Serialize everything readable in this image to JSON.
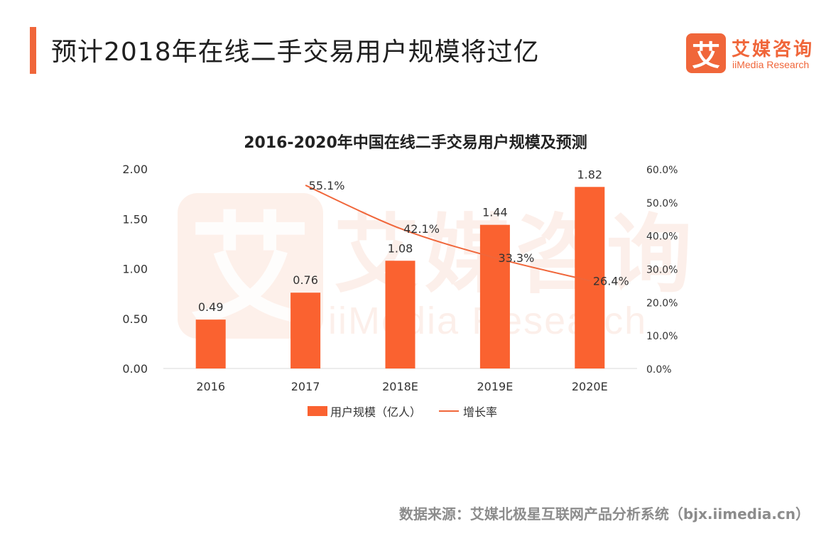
{
  "page_title": "预计2018年在线二手交易用户规模将过亿",
  "logo": {
    "cn": "艾媒咨询",
    "en": "iiMedia Research",
    "mark": "艾"
  },
  "source": "数据来源：艾媒北极星互联网产品分析系统（bjx.iimedia.cn）",
  "colors": {
    "accent": "#f0663a",
    "bar": "#fa6230",
    "line": "#f0663a",
    "watermark": "#fbe3d9"
  },
  "chart_data": {
    "type": "bar",
    "title": "2016-2020年中国在线二手交易用户规模及预测",
    "categories": [
      "2016",
      "2017",
      "2018E",
      "2019E",
      "2020E"
    ],
    "series": [
      {
        "name": "用户规模（亿人）",
        "type": "bar",
        "axis": "left",
        "values": [
          0.49,
          0.76,
          1.08,
          1.44,
          1.82
        ],
        "labels": [
          "0.49",
          "0.76",
          "1.08",
          "1.44",
          "1.82"
        ]
      },
      {
        "name": "增长率",
        "type": "line",
        "axis": "right",
        "values": [
          null,
          55.1,
          42.1,
          33.3,
          26.4
        ],
        "labels": [
          "",
          "55.1%",
          "42.1%",
          "33.3%",
          "26.4%"
        ]
      }
    ],
    "y_left": {
      "min": 0,
      "max": 2,
      "ticks": [
        "0.00",
        "0.50",
        "1.00",
        "1.50",
        "2.00"
      ]
    },
    "y_right": {
      "min": 0,
      "max": 60,
      "ticks": [
        "0.0%",
        "10.0%",
        "20.0%",
        "30.0%",
        "40.0%",
        "50.0%",
        "60.0%"
      ]
    },
    "grid": false,
    "legend": "bottom"
  }
}
